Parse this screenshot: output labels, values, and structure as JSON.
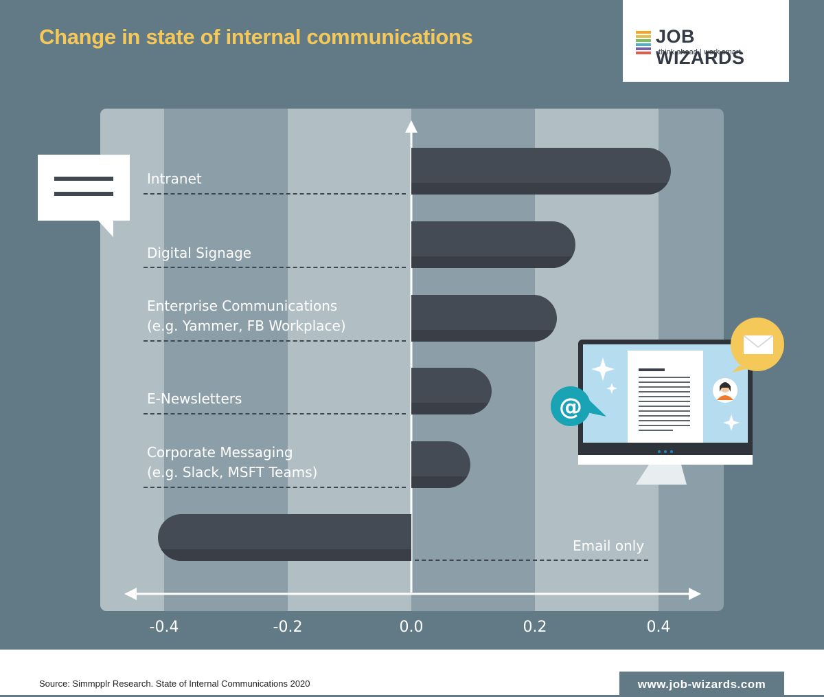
{
  "header": {
    "title": "Change in state of internal communications"
  },
  "logo": {
    "name": "JOB WIZARDS",
    "tagline": "think ahead | work smart",
    "stripe_colors": [
      "#f5a623",
      "#e0c24a",
      "#7cbf5a",
      "#4fb0c6",
      "#7a5ea8",
      "#e25c4b"
    ]
  },
  "chart_data": {
    "type": "bar",
    "orientation": "horizontal",
    "categories": [
      "Intranet",
      "Digital Signage",
      "Enterprise Communications (e.g. Yammer, FB Workplace)",
      "E-Newsletters",
      "Corporate Messaging (e.g. Slack, MSFT Teams)",
      "Email only"
    ],
    "category_lines": [
      [
        "Intranet"
      ],
      [
        "Digital Signage"
      ],
      [
        "Enterprise Communications",
        "(e.g. Yammer, FB Workplace)"
      ],
      [
        "E-Newsletters"
      ],
      [
        "Corporate Messaging",
        "(e.g. Slack, MSFT Teams)"
      ],
      [
        "Email only"
      ]
    ],
    "values": [
      0.42,
      0.265,
      0.235,
      0.13,
      0.095,
      -0.41
    ],
    "xlim": [
      -0.5,
      0.5
    ],
    "xticks": [
      "-0.4",
      "-0.2",
      "0.0",
      "0.2",
      "0.4"
    ],
    "grid": "alternating vertical bands",
    "colors": {
      "bar": "#454b55",
      "bar_shade": "#393e47",
      "background": "#627a86",
      "panel": "#8c9fa8",
      "band_light": "#b1bfc5",
      "title": "#f5c85a"
    }
  },
  "footer": {
    "source": "Source: Simmpplr Research. State of Internal Communications 2020",
    "url": "www.job-wizards.com"
  },
  "illustration": {
    "icons": [
      "speech-bubble-icon",
      "monitor-icon",
      "email-icon",
      "at-sign-icon",
      "avatar-icon",
      "sparkle-icon"
    ]
  }
}
